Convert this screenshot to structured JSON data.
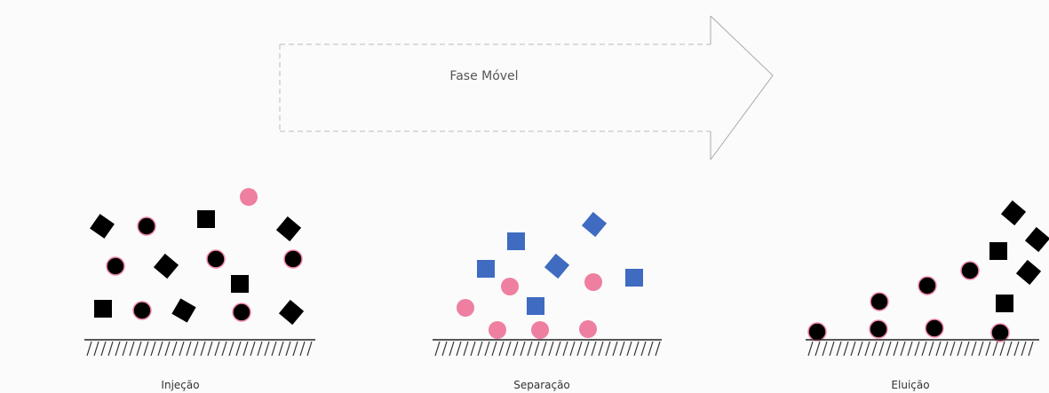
{
  "arrow": {
    "label": "Fase Móvel"
  },
  "stages": [
    {
      "label": "Injeção"
    },
    {
      "label": "Separação"
    },
    {
      "label": "Eluição"
    }
  ]
}
